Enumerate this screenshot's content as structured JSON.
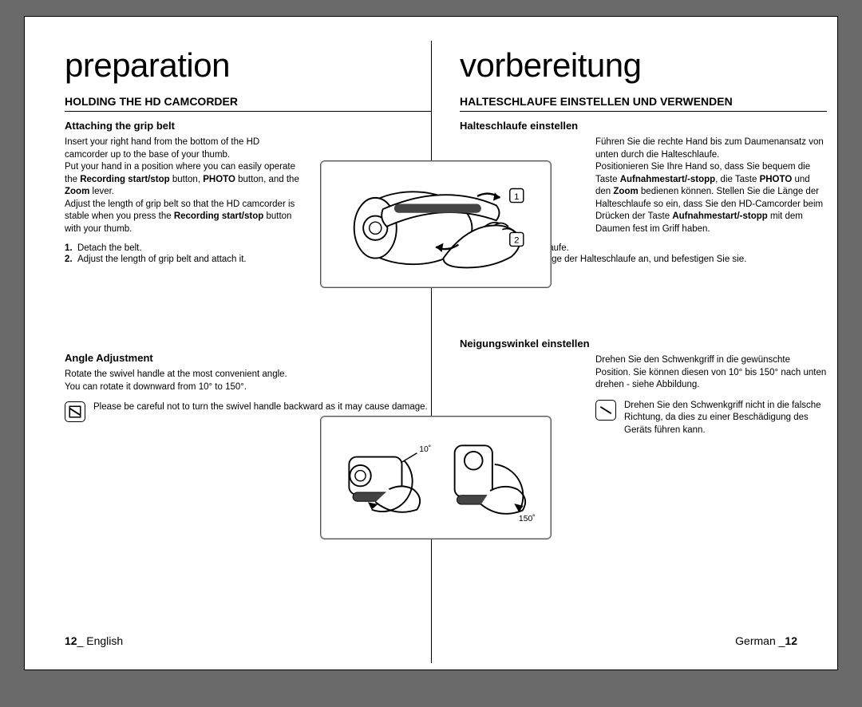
{
  "left": {
    "title": "preparation",
    "section_heading": "HOLDING THE HD CAMCORDER",
    "sub1": "Attaching the grip belt",
    "para1_html": "Insert your right hand from the bottom of the HD camcorder up to the base of your thumb.<br>Put your hand in a position where you can easily operate the <b>Recording start/stop</b> button, <b>PHOTO</b> button, and the <b>Zoom</b> lever.<br>Adjust the length of grip belt so that the HD camcorder is stable when you press the <b>Recording start/stop</b> button with your thumb.",
    "steps1": [
      "Detach the belt.",
      "Adjust the length of grip belt and attach it."
    ],
    "sub2": "Angle Adjustment",
    "para2_html": "Rotate the swivel handle at the most convenient angle.<br>You can rotate it downward from 10° to 150°.",
    "note": "Please be careful not to turn the swivel handle backward as it may cause damage.",
    "footer_page": "12",
    "footer_lang": "English"
  },
  "right": {
    "title": "vorbereitung",
    "section_heading": "HALTESCHLAUFE EINSTELLEN UND VERWENDEN",
    "sub1": "Halteschlaufe einstellen",
    "para1_html": "Führen Sie die rechte Hand bis zum Daumenansatz von unten durch die Halteschlaufe.<br>Positionieren Sie Ihre Hand so, dass Sie bequem die Taste <b>Aufnahmestart/-stopp</b>, die Taste <b>PHOTO</b> und den <b>Zoom</b> bedienen können. Stellen Sie die Länge der Halteschlaufe so ein, dass Sie den HD-Camcorder beim Drücken der Taste <b>Aufnahmestart/-stopp</b> mit dem Daumen fest im Griff haben.",
    "steps1": [
      "Lösen Sie die Schlaufe.",
      "Passen Sie die Länge der Halteschlaufe an, und befestigen Sie sie."
    ],
    "sub2": "Neigungswinkel einstellen",
    "para2_html": "Drehen Sie den Schwenkgriff in die gewünschte Position. Sie können diesen von 10° bis 150° nach unten drehen - siehe Abbildung.",
    "note": "Drehen Sie den Schwenkgriff nicht in die falsche Richtung, da dies zu einer Beschädigung des Geräts führen kann.",
    "footer_page": "12",
    "footer_lang": "German"
  },
  "figure1": {
    "callout1": "1",
    "callout2": "2"
  },
  "figure2": {
    "angle_top": "10˚",
    "angle_bottom": "150˚"
  },
  "colors": {
    "text": "#000000",
    "page_bg": "#ffffff",
    "outer_bg": "#6a6a6a",
    "figure_border": "#555555"
  }
}
